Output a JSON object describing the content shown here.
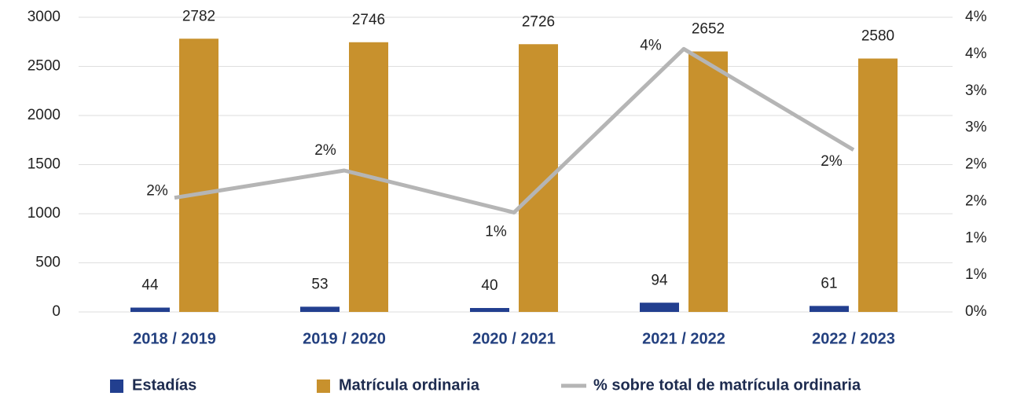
{
  "chart_data": {
    "type": "bar_line",
    "categories": [
      "2018 / 2019",
      "2019 / 2020",
      "2020 / 2021",
      "2021 / 2022",
      "2022 / 2023"
    ],
    "series": [
      {
        "name": "Estadías",
        "color": "#223f8f",
        "type": "bar",
        "values": [
          44,
          53,
          40,
          94,
          61
        ]
      },
      {
        "name": "Matrícula ordinaria",
        "color": "#c8912d",
        "type": "bar",
        "values": [
          2782,
          2746,
          2726,
          2652,
          2580
        ]
      },
      {
        "name": "% sobre total de matrícula ordinaria",
        "color": "#b5b5b5",
        "type": "line",
        "axis": "y2",
        "values": [
          1.55,
          1.92,
          1.35,
          3.57,
          2.2
        ],
        "value_labels": [
          "2%",
          "2%",
          "1%",
          "4%",
          "2%"
        ]
      }
    ],
    "ylim": [
      0,
      3000
    ],
    "yticks": [
      0,
      500,
      1000,
      1500,
      2000,
      2500,
      3000
    ],
    "y2lim": [
      0,
      4
    ],
    "y2ticks": [
      {
        "value": 0,
        "label": "0%"
      },
      {
        "value": 0.5,
        "label": "1%"
      },
      {
        "value": 1,
        "label": "1%"
      },
      {
        "value": 1.5,
        "label": "2%"
      },
      {
        "value": 2,
        "label": "2%"
      },
      {
        "value": 2.5,
        "label": "3%"
      },
      {
        "value": 3,
        "label": "3%"
      },
      {
        "value": 3.5,
        "label": "4%"
      },
      {
        "value": 4,
        "label": "4%"
      }
    ],
    "grid": true,
    "legend": "bottom"
  }
}
